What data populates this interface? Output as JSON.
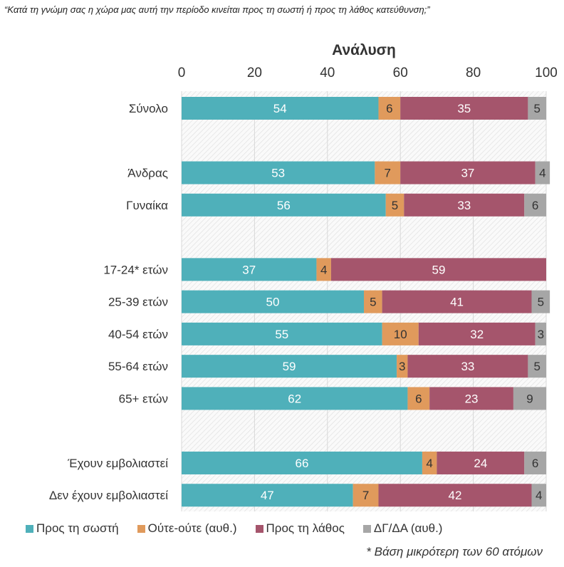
{
  "question": "“Κατά τη γνώμη σας η χώρα μας αυτή την περίοδο κινείται προς τη σωστή ή προς τη λάθος κατεύθυνση;”",
  "note": "* Βάση μικρότερη των 60 ατόμων",
  "chart_data": {
    "type": "bar",
    "orientation": "horizontal",
    "stacked": true,
    "title": "Ανάλυση",
    "xlim": [
      0,
      100
    ],
    "xticks": [
      0,
      20,
      40,
      60,
      80,
      100
    ],
    "grid": true,
    "legend_position": "bottom",
    "categories": [
      "Σύνολο",
      "",
      "Άνδρας",
      "Γυναίκα",
      "",
      "17-24* ετών",
      "25-39 ετών",
      "40-54 ετών",
      "55-64 ετών",
      "65+ ετών",
      "",
      "Έχουν εμβολιαστεί",
      "Δεν έχουν εμβολιαστεί"
    ],
    "series": [
      {
        "name": "Προς τη σωστή",
        "color": "#4fb0ba",
        "label_color": "#ffffff",
        "values": [
          54,
          null,
          53,
          56,
          null,
          37,
          50,
          55,
          59,
          62,
          null,
          66,
          47
        ]
      },
      {
        "name": "Ούτε-ούτε (αυθ.)",
        "color": "#e09a5c",
        "label_color": "#333333",
        "values": [
          6,
          null,
          7,
          5,
          null,
          4,
          5,
          10,
          3,
          6,
          null,
          4,
          7
        ]
      },
      {
        "name": "Προς τη λάθος",
        "color": "#a5556c",
        "label_color": "#ffffff",
        "values": [
          35,
          null,
          37,
          33,
          null,
          59,
          41,
          32,
          33,
          23,
          null,
          24,
          42
        ]
      },
      {
        "name": "ΔΓ/ΔΑ (αυθ.)",
        "color": "#a6a6a6",
        "label_color": "#333333",
        "values": [
          5,
          null,
          4,
          6,
          null,
          0,
          5,
          3,
          5,
          9,
          null,
          6,
          4
        ]
      }
    ]
  }
}
